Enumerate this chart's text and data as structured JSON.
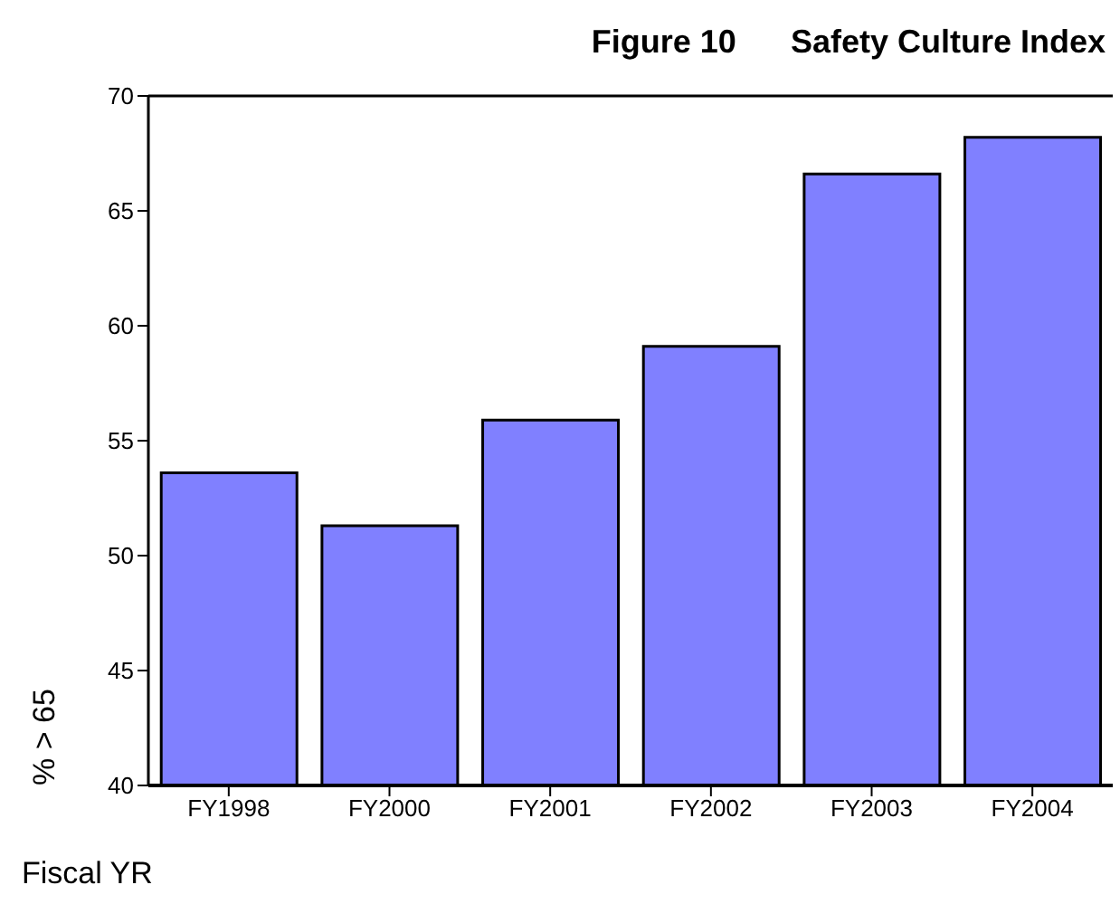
{
  "chart_data": {
    "type": "bar",
    "title": "Figure 10      Safety Culture Index",
    "xlabel": "Fiscal YR",
    "ylabel": "% > 65",
    "categories": [
      "FY1998",
      "FY2000",
      "FY2001",
      "FY2002",
      "FY2003",
      "FY2004"
    ],
    "values": [
      53.6,
      51.3,
      55.9,
      59.1,
      66.6,
      68.2
    ],
    "color": "#8080ff",
    "ylim": [
      40,
      70
    ],
    "yticks": [
      40,
      45,
      50,
      55,
      60,
      65,
      70
    ],
    "grid": false
  }
}
